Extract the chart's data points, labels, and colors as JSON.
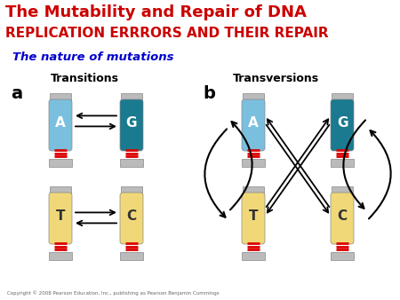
{
  "title1": "The Mutability and Repair of DNA",
  "title2": "REPLICATION ERRRORS AND THEIR REPAIR",
  "subtitle": "The nature of mutations",
  "label_a": "Transitions",
  "label_b": "Transversions",
  "letter_a": "a",
  "letter_b": "b",
  "bg_color": "#ffffff",
  "title1_color": "#cc0000",
  "title2_color": "#cc0000",
  "subtitle_color": "#0000cc",
  "tube_blue_color": "#7bbfde",
  "tube_dark_blue_color": "#1a7a90",
  "tube_yellow_color": "#f0d878",
  "tube_cap_color": "#bbbbbb",
  "tube_base_color": "#bbbbbb",
  "red_stripe_color": "#dd0000",
  "copyright": "Copyright © 2008 Pearson Education, Inc., publishing as Pearson Benjamin Cummings"
}
